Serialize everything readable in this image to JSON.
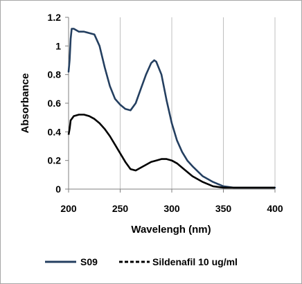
{
  "chart_data": {
    "type": "line",
    "title": "",
    "xlabel": "Wavelengh (nm)",
    "ylabel": "Absorbance",
    "xlim": [
      200,
      400
    ],
    "ylim": [
      0,
      1.2
    ],
    "x_ticks": [
      200,
      250,
      300,
      350,
      400
    ],
    "y_ticks": [
      0,
      0.2,
      0.4,
      0.6,
      0.8,
      1,
      1.2
    ],
    "x_tick_labels": [
      "200",
      "250",
      "300",
      "350",
      "400"
    ],
    "y_tick_labels": [
      "0",
      "0.2",
      "0.4",
      "0.6",
      "0.8",
      "1",
      "1.2"
    ],
    "grid": "vertical",
    "legend": "bottom",
    "series": [
      {
        "name": "S09",
        "color": "#243f60",
        "style": "solid",
        "x": [
          200,
          201,
          202,
          203,
          205,
          210,
          215,
          220,
          225,
          230,
          235,
          240,
          245,
          250,
          255,
          260,
          265,
          270,
          275,
          280,
          283,
          285,
          290,
          295,
          300,
          305,
          310,
          315,
          320,
          330,
          340,
          350,
          360,
          370,
          380,
          390,
          400
        ],
        "y": [
          0.82,
          0.9,
          1.05,
          1.12,
          1.12,
          1.1,
          1.1,
          1.09,
          1.08,
          1.0,
          0.85,
          0.72,
          0.63,
          0.59,
          0.56,
          0.55,
          0.6,
          0.7,
          0.8,
          0.88,
          0.9,
          0.89,
          0.8,
          0.62,
          0.46,
          0.34,
          0.26,
          0.2,
          0.16,
          0.09,
          0.05,
          0.02,
          0.01,
          0.01,
          0.01,
          0.01,
          0.01
        ]
      },
      {
        "name": "Sildenafil 10 ug/ml",
        "color": "#000000",
        "style": "dashed",
        "x": [
          200,
          201,
          202,
          203,
          205,
          210,
          215,
          220,
          225,
          230,
          235,
          240,
          245,
          250,
          255,
          260,
          265,
          270,
          275,
          280,
          285,
          290,
          295,
          300,
          305,
          310,
          320,
          330,
          340,
          350,
          360,
          370,
          380,
          390,
          400
        ],
        "y": [
          0.38,
          0.42,
          0.48,
          0.49,
          0.51,
          0.52,
          0.52,
          0.51,
          0.49,
          0.46,
          0.42,
          0.37,
          0.31,
          0.25,
          0.19,
          0.14,
          0.13,
          0.15,
          0.17,
          0.19,
          0.2,
          0.21,
          0.21,
          0.2,
          0.18,
          0.15,
          0.09,
          0.05,
          0.02,
          0.01,
          0.01,
          0.01,
          0.01,
          0.01,
          0.01
        ]
      }
    ]
  }
}
